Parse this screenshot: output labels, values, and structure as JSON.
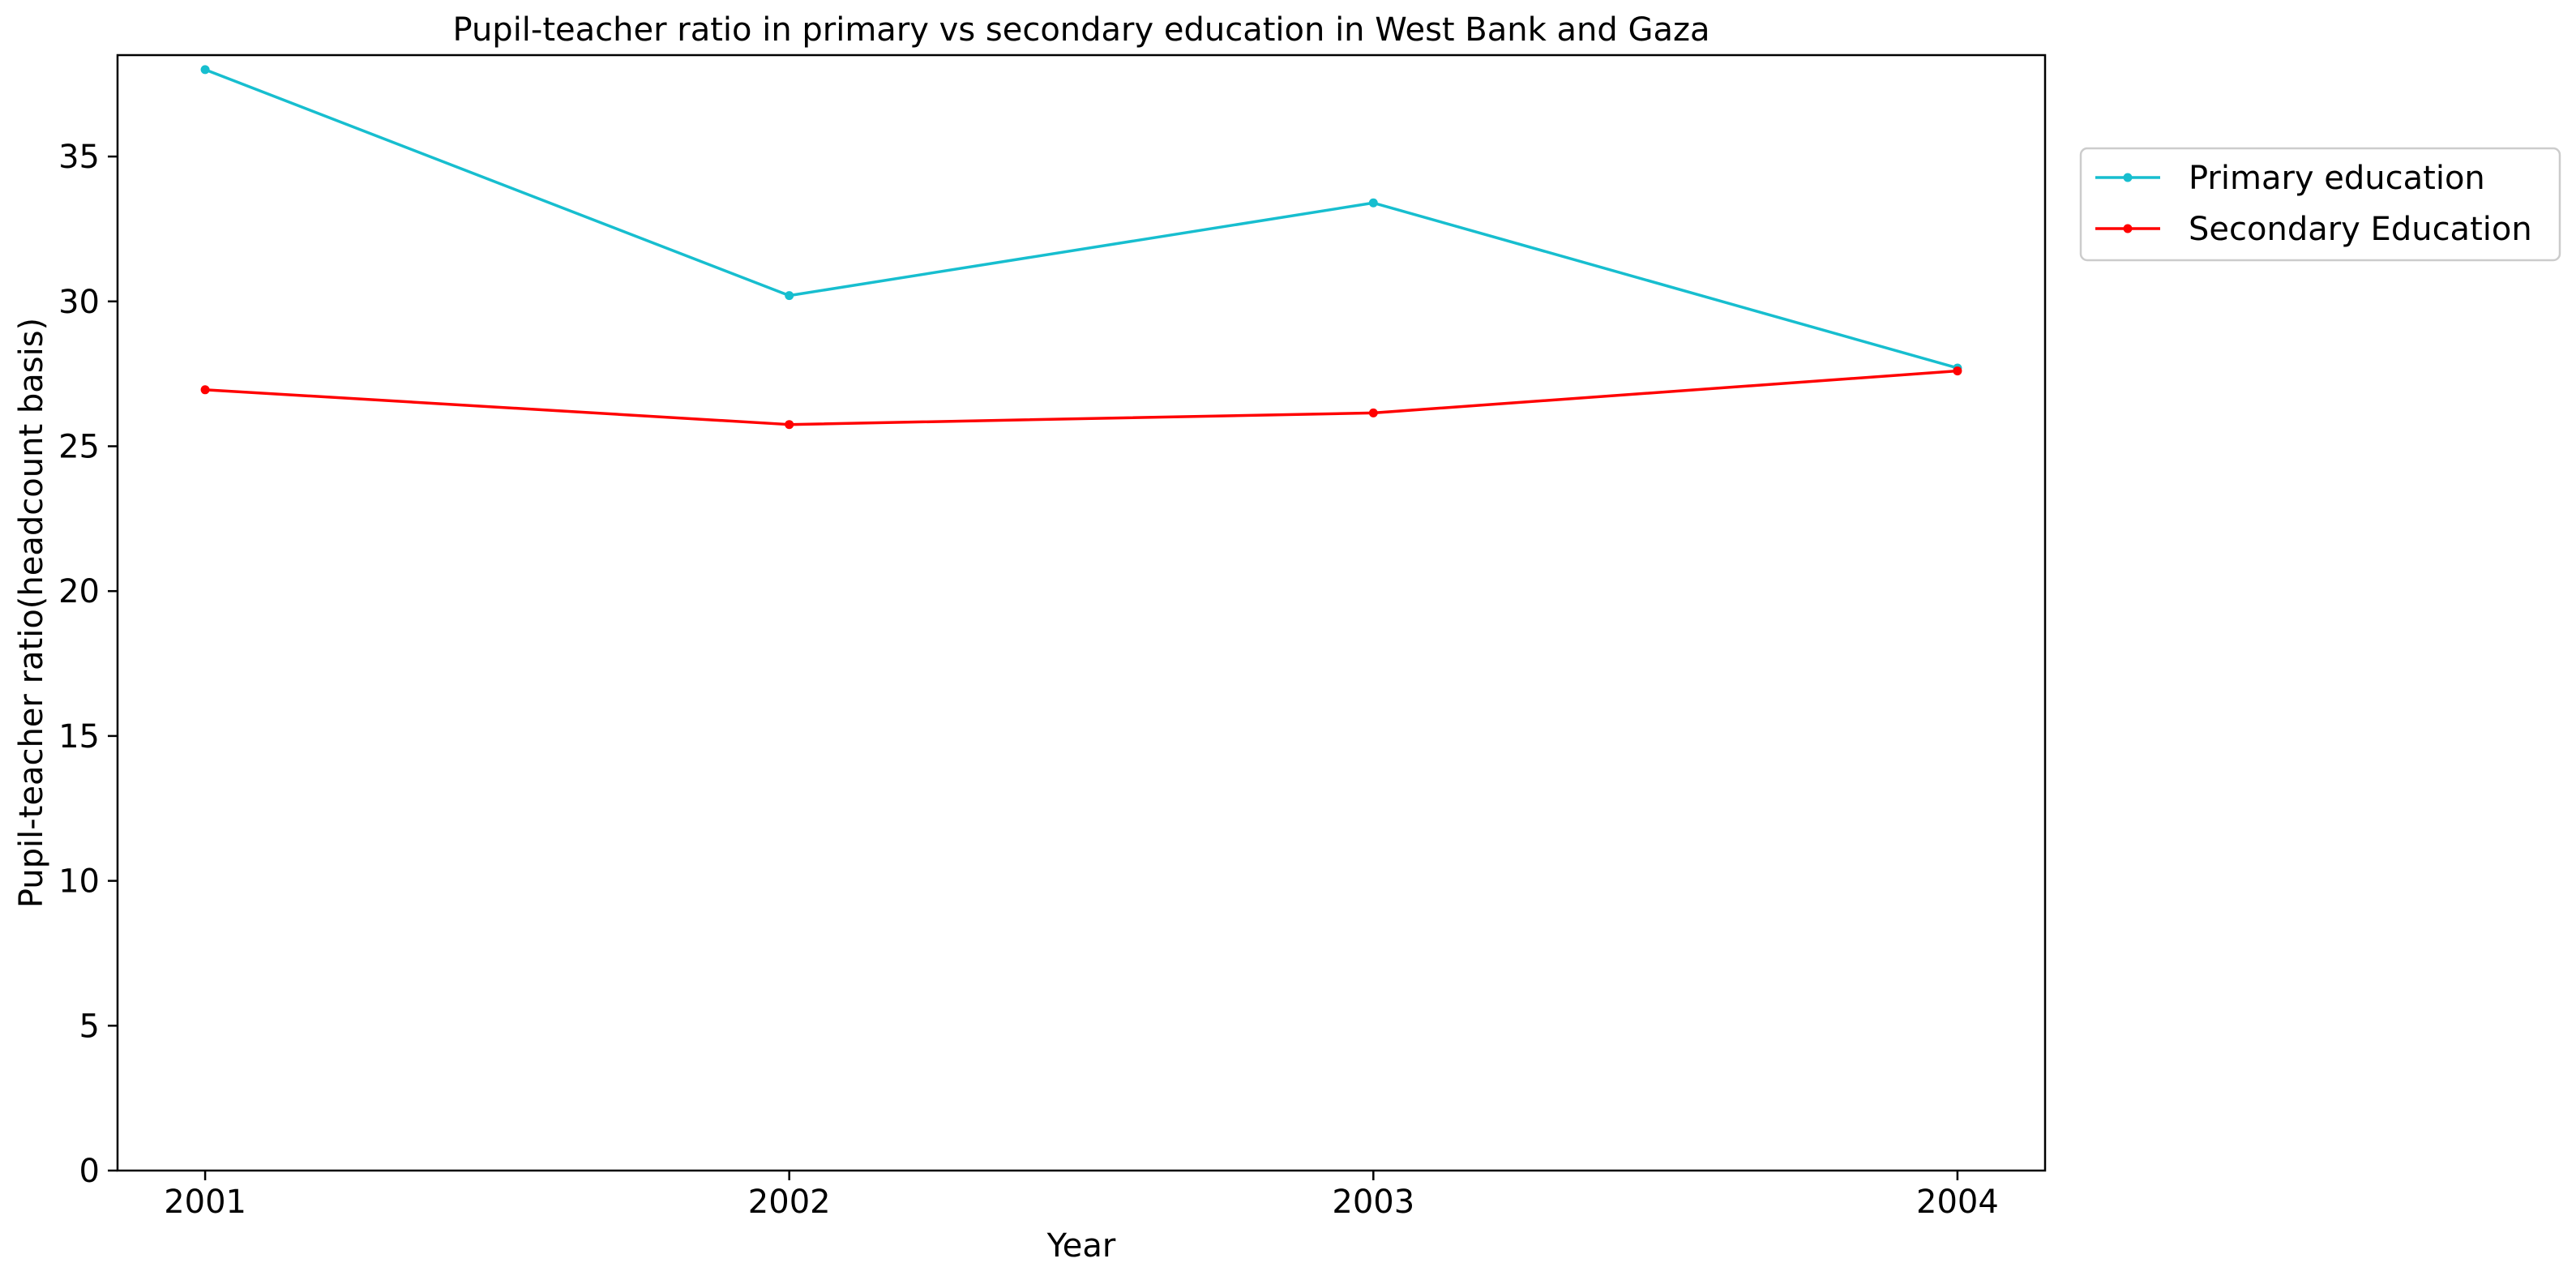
{
  "chart_data": {
    "type": "line",
    "title": "Pupil-teacher ratio in primary vs secondary education in West Bank and Gaza",
    "xlabel": "Year",
    "ylabel": "Pupil-teacher ratio(headcount basis)",
    "x": [
      "2001",
      "2002",
      "2003",
      "2004"
    ],
    "xlim": [
      2000.85,
      2004.15
    ],
    "ylim": [
      0,
      38.5
    ],
    "yticks": [
      0,
      5,
      10,
      15,
      20,
      25,
      30,
      35
    ],
    "grid": false,
    "legend_position": "outside top-right",
    "series": [
      {
        "name": "Primary education",
        "color": "#17becf",
        "marker": "circle",
        "values": [
          38.0,
          30.2,
          33.4,
          27.7
        ]
      },
      {
        "name": "Secondary Education",
        "color": "#ff0000",
        "marker": "circle",
        "values": [
          26.95,
          25.75,
          26.15,
          27.6
        ]
      }
    ]
  }
}
